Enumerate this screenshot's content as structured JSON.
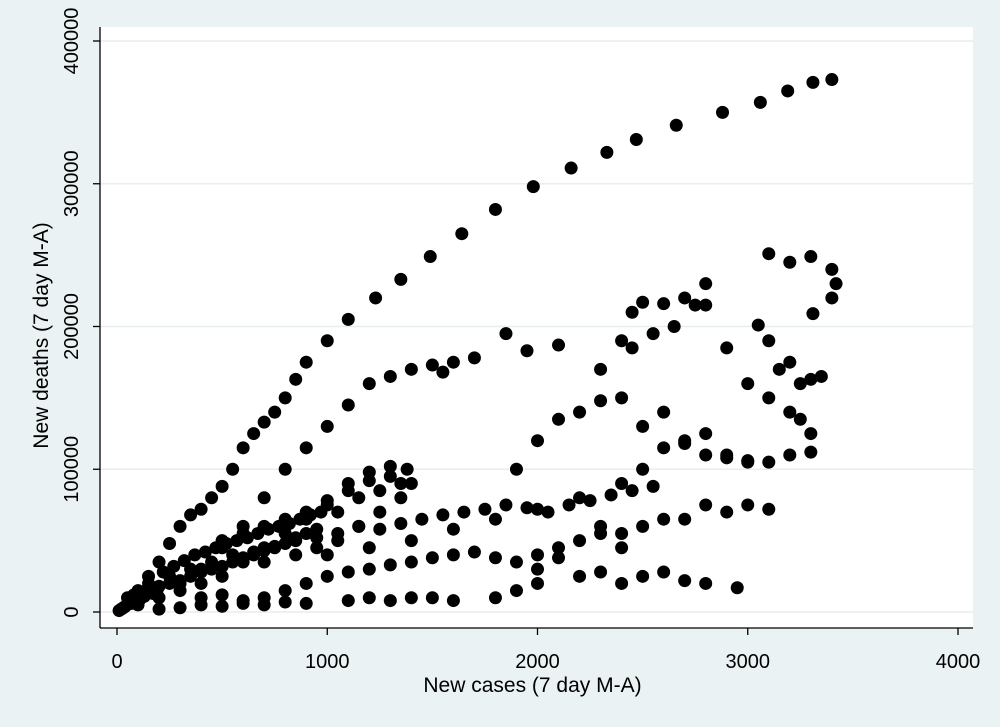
{
  "chart_data": {
    "type": "scatter",
    "title": "",
    "xlabel": "New cases (7 day M-A)",
    "ylabel": "New deaths (7 day M-A)",
    "xlim": [
      0,
      4000
    ],
    "ylim": [
      0,
      400000
    ],
    "xticks": [
      0,
      1000,
      2000,
      3000,
      4000
    ],
    "yticks": [
      0,
      100000,
      200000,
      300000,
      400000
    ],
    "xtick_labels": [
      "0",
      "1000",
      "2000",
      "3000",
      "4000"
    ],
    "ytick_labels": [
      "0",
      "100000",
      "200000",
      "300000",
      "400000"
    ],
    "grid": "horizontal",
    "legend": "none",
    "colors": {
      "background": "#eaf2f3",
      "plot_area": "#ffffff",
      "marker": "#000000",
      "grid": "#e6eef0"
    },
    "series": [
      {
        "points": [
          [
            10,
            1000
          ],
          [
            30,
            3000
          ],
          [
            60,
            8000
          ],
          [
            100,
            15000
          ],
          [
            150,
            25000
          ],
          [
            200,
            35000
          ],
          [
            250,
            48000
          ],
          [
            300,
            60000
          ],
          [
            350,
            68000
          ],
          [
            400,
            72000
          ],
          [
            450,
            80000
          ],
          [
            500,
            88000
          ],
          [
            550,
            100000
          ],
          [
            600,
            115000
          ],
          [
            650,
            125000
          ],
          [
            700,
            133000
          ],
          [
            750,
            140000
          ],
          [
            800,
            150000
          ],
          [
            850,
            163000
          ],
          [
            900,
            175000
          ],
          [
            1000,
            190000
          ],
          [
            1100,
            205000
          ],
          [
            1230,
            220000
          ],
          [
            1350,
            233000
          ],
          [
            1490,
            249000
          ],
          [
            1640,
            265000
          ],
          [
            1800,
            282000
          ],
          [
            1980,
            298000
          ],
          [
            2160,
            311000
          ],
          [
            2330,
            322000
          ],
          [
            2470,
            331000
          ],
          [
            2660,
            341000
          ],
          [
            2880,
            350000
          ],
          [
            3060,
            357000
          ],
          [
            3190,
            365000
          ],
          [
            3310,
            371000
          ],
          [
            3400,
            373000
          ],
          [
            300,
            20000
          ],
          [
            400,
            30000
          ],
          [
            500,
            45000
          ],
          [
            600,
            60000
          ],
          [
            700,
            80000
          ],
          [
            800,
            100000
          ],
          [
            900,
            115000
          ],
          [
            1000,
            130000
          ],
          [
            1100,
            145000
          ],
          [
            1200,
            160000
          ],
          [
            1300,
            165000
          ],
          [
            1400,
            170000
          ],
          [
            1500,
            173000
          ],
          [
            1550,
            168000
          ],
          [
            1600,
            175000
          ],
          [
            1700,
            178000
          ],
          [
            1850,
            195000
          ],
          [
            1950,
            183000
          ],
          [
            2100,
            187000
          ],
          [
            400,
            20000
          ],
          [
            500,
            25000
          ],
          [
            600,
            35000
          ],
          [
            700,
            45000
          ],
          [
            800,
            55000
          ],
          [
            900,
            65000
          ],
          [
            1000,
            78000
          ],
          [
            1100,
            90000
          ],
          [
            1200,
            98000
          ],
          [
            1300,
            102000
          ],
          [
            1380,
            100000
          ],
          [
            1400,
            90000
          ],
          [
            1350,
            80000
          ],
          [
            1250,
            70000
          ],
          [
            1150,
            60000
          ],
          [
            1050,
            50000
          ],
          [
            950,
            45000
          ],
          [
            850,
            40000
          ],
          [
            700,
            35000
          ],
          [
            1000,
            40000
          ],
          [
            1200,
            45000
          ],
          [
            1400,
            50000
          ],
          [
            1600,
            58000
          ],
          [
            1800,
            65000
          ],
          [
            2000,
            72000
          ],
          [
            2200,
            80000
          ],
          [
            2400,
            90000
          ],
          [
            2500,
            100000
          ],
          [
            2600,
            115000
          ],
          [
            2700,
            118000
          ],
          [
            2800,
            110000
          ],
          [
            2900,
            108000
          ],
          [
            3000,
            106000
          ],
          [
            3100,
            105000
          ],
          [
            3200,
            110000
          ],
          [
            3300,
            112000
          ],
          [
            1900,
            100000
          ],
          [
            2000,
            120000
          ],
          [
            2100,
            135000
          ],
          [
            2200,
            140000
          ],
          [
            2300,
            148000
          ],
          [
            2400,
            150000
          ],
          [
            2500,
            130000
          ],
          [
            2600,
            140000
          ],
          [
            2700,
            120000
          ],
          [
            2800,
            125000
          ],
          [
            2300,
            170000
          ],
          [
            2400,
            190000
          ],
          [
            2450,
            210000
          ],
          [
            2500,
            217000
          ],
          [
            2600,
            216000
          ],
          [
            2700,
            220000
          ],
          [
            2800,
            230000
          ],
          [
            2750,
            215000
          ],
          [
            2650,
            200000
          ],
          [
            2550,
            195000
          ],
          [
            2450,
            185000
          ],
          [
            2800,
            215000
          ],
          [
            2900,
            185000
          ],
          [
            3000,
            160000
          ],
          [
            3050,
            201000
          ],
          [
            3100,
            190000
          ],
          [
            3150,
            170000
          ],
          [
            3200,
            175000
          ],
          [
            3250,
            160000
          ],
          [
            3300,
            163000
          ],
          [
            3350,
            165000
          ],
          [
            3100,
            251000
          ],
          [
            3200,
            245000
          ],
          [
            3300,
            249000
          ],
          [
            3400,
            240000
          ],
          [
            3420,
            230000
          ],
          [
            3400,
            220000
          ],
          [
            3310,
            209000
          ],
          [
            3200,
            140000
          ],
          [
            3250,
            135000
          ],
          [
            3300,
            125000
          ],
          [
            3100,
            150000
          ],
          [
            3000,
            105000
          ],
          [
            2900,
            110000
          ],
          [
            2800,
            75000
          ],
          [
            2900,
            70000
          ],
          [
            3000,
            75000
          ],
          [
            3100,
            72000
          ],
          [
            2700,
            65000
          ],
          [
            2600,
            65000
          ],
          [
            2500,
            60000
          ],
          [
            2400,
            55000
          ],
          [
            2300,
            60000
          ],
          [
            2400,
            20000
          ],
          [
            2500,
            25000
          ],
          [
            2600,
            28000
          ],
          [
            2700,
            22000
          ],
          [
            2800,
            20000
          ],
          [
            2950,
            17000
          ],
          [
            2000,
            30000
          ],
          [
            2100,
            38000
          ],
          [
            2200,
            25000
          ],
          [
            2300,
            28000
          ],
          [
            2400,
            45000
          ],
          [
            1800,
            10000
          ],
          [
            1900,
            15000
          ],
          [
            2000,
            20000
          ],
          [
            1500,
            10000
          ],
          [
            1600,
            8000
          ],
          [
            1400,
            10000
          ],
          [
            1300,
            8000
          ],
          [
            1200,
            10000
          ],
          [
            1100,
            8000
          ],
          [
            100,
            5000
          ],
          [
            200,
            10000
          ],
          [
            300,
            15000
          ],
          [
            400,
            10000
          ],
          [
            500,
            12000
          ],
          [
            600,
            8000
          ],
          [
            700,
            10000
          ],
          [
            800,
            15000
          ],
          [
            900,
            20000
          ],
          [
            1000,
            25000
          ],
          [
            1100,
            28000
          ],
          [
            1200,
            30000
          ],
          [
            1300,
            33000
          ],
          [
            1400,
            35000
          ],
          [
            1500,
            38000
          ],
          [
            1600,
            40000
          ],
          [
            1700,
            42000
          ],
          [
            1800,
            38000
          ],
          [
            1900,
            35000
          ],
          [
            2000,
            40000
          ],
          [
            2100,
            45000
          ],
          [
            2200,
            50000
          ],
          [
            2300,
            55000
          ],
          [
            200,
            2000
          ],
          [
            300,
            3000
          ],
          [
            400,
            5000
          ],
          [
            500,
            4000
          ],
          [
            600,
            6000
          ],
          [
            700,
            5000
          ],
          [
            800,
            7000
          ],
          [
            900,
            6000
          ],
          [
            150,
            20000
          ],
          [
            250,
            25000
          ],
          [
            350,
            30000
          ],
          [
            450,
            35000
          ],
          [
            550,
            40000
          ],
          [
            650,
            42000
          ],
          [
            750,
            45000
          ],
          [
            850,
            50000
          ],
          [
            950,
            52000
          ],
          [
            1050,
            55000
          ],
          [
            1150,
            60000
          ],
          [
            1250,
            58000
          ],
          [
            1350,
            62000
          ],
          [
            1450,
            65000
          ],
          [
            1550,
            68000
          ],
          [
            1650,
            70000
          ],
          [
            1750,
            72000
          ],
          [
            1850,
            75000
          ],
          [
            1950,
            73000
          ],
          [
            2050,
            70000
          ],
          [
            2150,
            75000
          ],
          [
            2250,
            78000
          ],
          [
            2350,
            82000
          ],
          [
            2450,
            85000
          ],
          [
            2550,
            88000
          ],
          [
            500,
            50000
          ],
          [
            600,
            55000
          ],
          [
            700,
            60000
          ],
          [
            800,
            65000
          ],
          [
            900,
            70000
          ],
          [
            1000,
            75000
          ],
          [
            1100,
            85000
          ],
          [
            1200,
            92000
          ],
          [
            1300,
            95000
          ],
          [
            1350,
            90000
          ],
          [
            1250,
            85000
          ],
          [
            1150,
            80000
          ],
          [
            1050,
            70000
          ],
          [
            50,
            10000
          ],
          [
            80,
            12000
          ],
          [
            120,
            14000
          ],
          [
            160,
            16000
          ],
          [
            200,
            18000
          ],
          [
            250,
            20000
          ],
          [
            300,
            22000
          ],
          [
            350,
            25000
          ],
          [
            400,
            28000
          ],
          [
            450,
            30000
          ],
          [
            500,
            32000
          ],
          [
            550,
            35000
          ],
          [
            600,
            38000
          ],
          [
            650,
            40000
          ],
          [
            700,
            43000
          ],
          [
            750,
            46000
          ],
          [
            800,
            48000
          ],
          [
            850,
            52000
          ],
          [
            900,
            55000
          ],
          [
            950,
            58000
          ],
          [
            20,
            2000
          ],
          [
            40,
            4000
          ],
          [
            70,
            6000
          ],
          [
            90,
            8000
          ],
          [
            110,
            9000
          ],
          [
            130,
            11000
          ],
          [
            170,
            13000
          ],
          [
            190,
            15000
          ],
          [
            220,
            28000
          ],
          [
            270,
            32000
          ],
          [
            320,
            36000
          ],
          [
            370,
            40000
          ],
          [
            420,
            42000
          ],
          [
            470,
            45000
          ],
          [
            520,
            48000
          ],
          [
            570,
            50000
          ],
          [
            620,
            52000
          ],
          [
            670,
            55000
          ],
          [
            720,
            58000
          ],
          [
            770,
            60000
          ],
          [
            820,
            62000
          ],
          [
            870,
            65000
          ],
          [
            920,
            68000
          ],
          [
            970,
            70000
          ]
        ]
      }
    ]
  }
}
